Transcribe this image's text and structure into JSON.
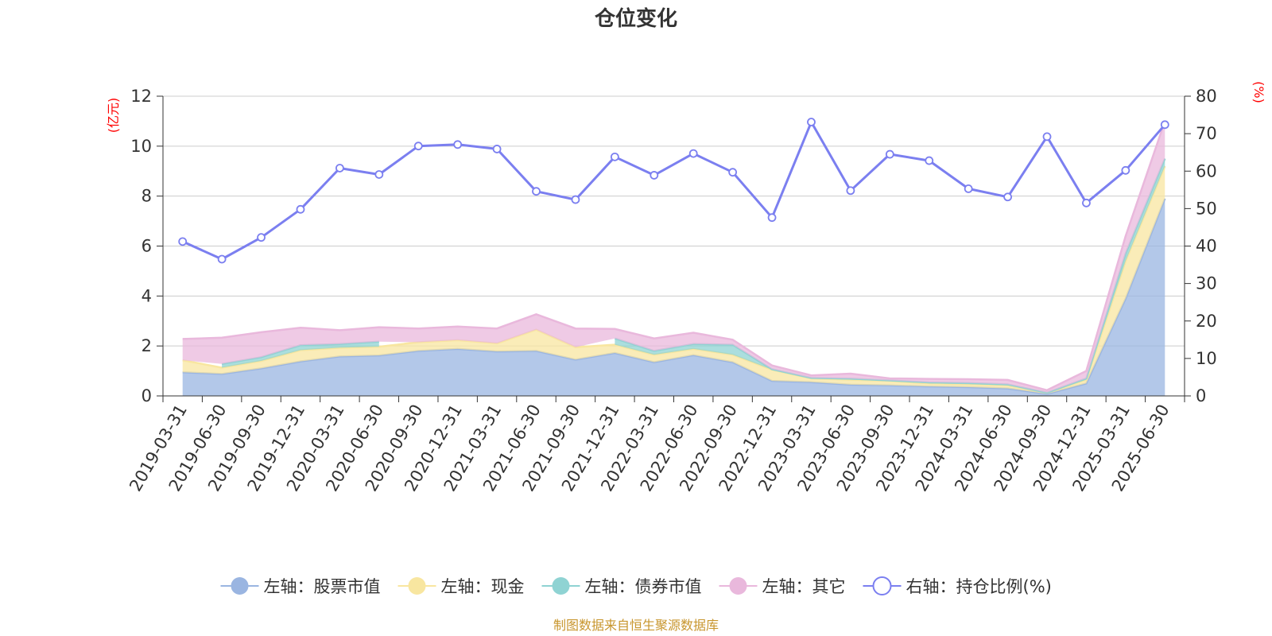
{
  "title": "仓位变化",
  "left_unit": "(亿元)",
  "right_unit": "(%)",
  "source": "制图数据来自恒生聚源数据库",
  "colors": {
    "stock": "#9ab5e1",
    "cash": "#f8e6a0",
    "bond": "#8fd3d3",
    "other": "#e9b8dc",
    "ratio": "#7b7ff0"
  },
  "legend": [
    {
      "key": "stock",
      "label": "左轴：股票市值",
      "icon": "filled-circle"
    },
    {
      "key": "cash",
      "label": "左轴：现金",
      "icon": "filled-circle"
    },
    {
      "key": "bond",
      "label": "左轴：债券市值",
      "icon": "filled-circle"
    },
    {
      "key": "other",
      "label": "左轴：其它",
      "icon": "filled-circle"
    },
    {
      "key": "ratio",
      "label": "右轴：持仓比例(%)",
      "icon": "hollow-circle"
    }
  ],
  "chart_data": {
    "type": "area",
    "stacked": true,
    "title": "仓位变化",
    "x": [
      "2019-03-31",
      "2019-06-30",
      "2019-09-30",
      "2019-12-31",
      "2020-03-31",
      "2020-06-30",
      "2020-09-30",
      "2020-12-31",
      "2021-03-31",
      "2021-06-30",
      "2021-09-30",
      "2021-12-31",
      "2022-03-31",
      "2022-06-30",
      "2022-09-30",
      "2022-12-31",
      "2023-03-31",
      "2023-06-30",
      "2023-09-30",
      "2023-12-31",
      "2024-03-31",
      "2024-06-30",
      "2024-09-30",
      "2024-12-31",
      "2025-03-31",
      "2025-06-30"
    ],
    "y_left": {
      "unit": "(亿元)",
      "range": [
        0,
        12
      ],
      "ticks": [
        0,
        2,
        4,
        6,
        8,
        10,
        12
      ]
    },
    "y_right": {
      "unit": "(%)",
      "range": [
        0,
        80
      ],
      "ticks": [
        0,
        10,
        20,
        30,
        40,
        50,
        60,
        70,
        80
      ]
    },
    "grid": true,
    "legend_position": "bottom",
    "series": [
      {
        "name": "左轴：股票市值",
        "key": "stock",
        "axis": "left",
        "values": [
          0.95,
          0.88,
          1.1,
          1.38,
          1.58,
          1.62,
          1.8,
          1.88,
          1.78,
          1.8,
          1.45,
          1.72,
          1.35,
          1.63,
          1.35,
          0.6,
          0.55,
          0.45,
          0.42,
          0.38,
          0.35,
          0.3,
          0.08,
          0.5,
          3.9,
          7.9
        ]
      },
      {
        "name": "左轴：现金",
        "key": "cash",
        "axis": "left",
        "values": [
          0.48,
          0.25,
          0.3,
          0.45,
          0.35,
          0.35,
          0.35,
          0.35,
          0.32,
          0.85,
          0.5,
          0.33,
          0.3,
          0.25,
          0.3,
          0.45,
          0.15,
          0.2,
          0.18,
          0.12,
          0.12,
          0.12,
          0.05,
          0.15,
          1.5,
          1.3
        ]
      },
      {
        "name": "左轴：债券市值",
        "key": "bond",
        "axis": "left",
        "values": [
          null,
          0.15,
          0.15,
          0.2,
          0.15,
          0.2,
          null,
          null,
          null,
          null,
          null,
          0.25,
          0.15,
          0.2,
          0.4,
          0.02,
          0.02,
          0.04,
          0.02,
          0.04,
          0.05,
          0.04,
          0.0,
          0.05,
          0.3,
          0.3
        ]
      },
      {
        "name": "左轴：其它",
        "key": "other",
        "axis": "left",
        "values": [
          0.85,
          1.05,
          1.0,
          0.7,
          0.55,
          0.58,
          0.55,
          0.55,
          0.6,
          0.62,
          0.75,
          0.38,
          0.5,
          0.45,
          0.2,
          0.15,
          0.1,
          0.2,
          0.08,
          0.14,
          0.15,
          0.18,
          0.1,
          0.3,
          0.7,
          1.5
        ]
      },
      {
        "name": "右轴：持仓比例(%)",
        "key": "ratio",
        "axis": "right",
        "type": "line",
        "values": [
          41.2,
          36.5,
          42.3,
          49.8,
          60.8,
          59.1,
          66.7,
          67.1,
          65.9,
          54.6,
          52.4,
          63.8,
          58.9,
          64.7,
          59.7,
          47.6,
          73.1,
          54.8,
          64.5,
          62.8,
          55.3,
          53.1,
          69.2,
          51.5,
          60.2,
          72.4
        ]
      }
    ]
  }
}
